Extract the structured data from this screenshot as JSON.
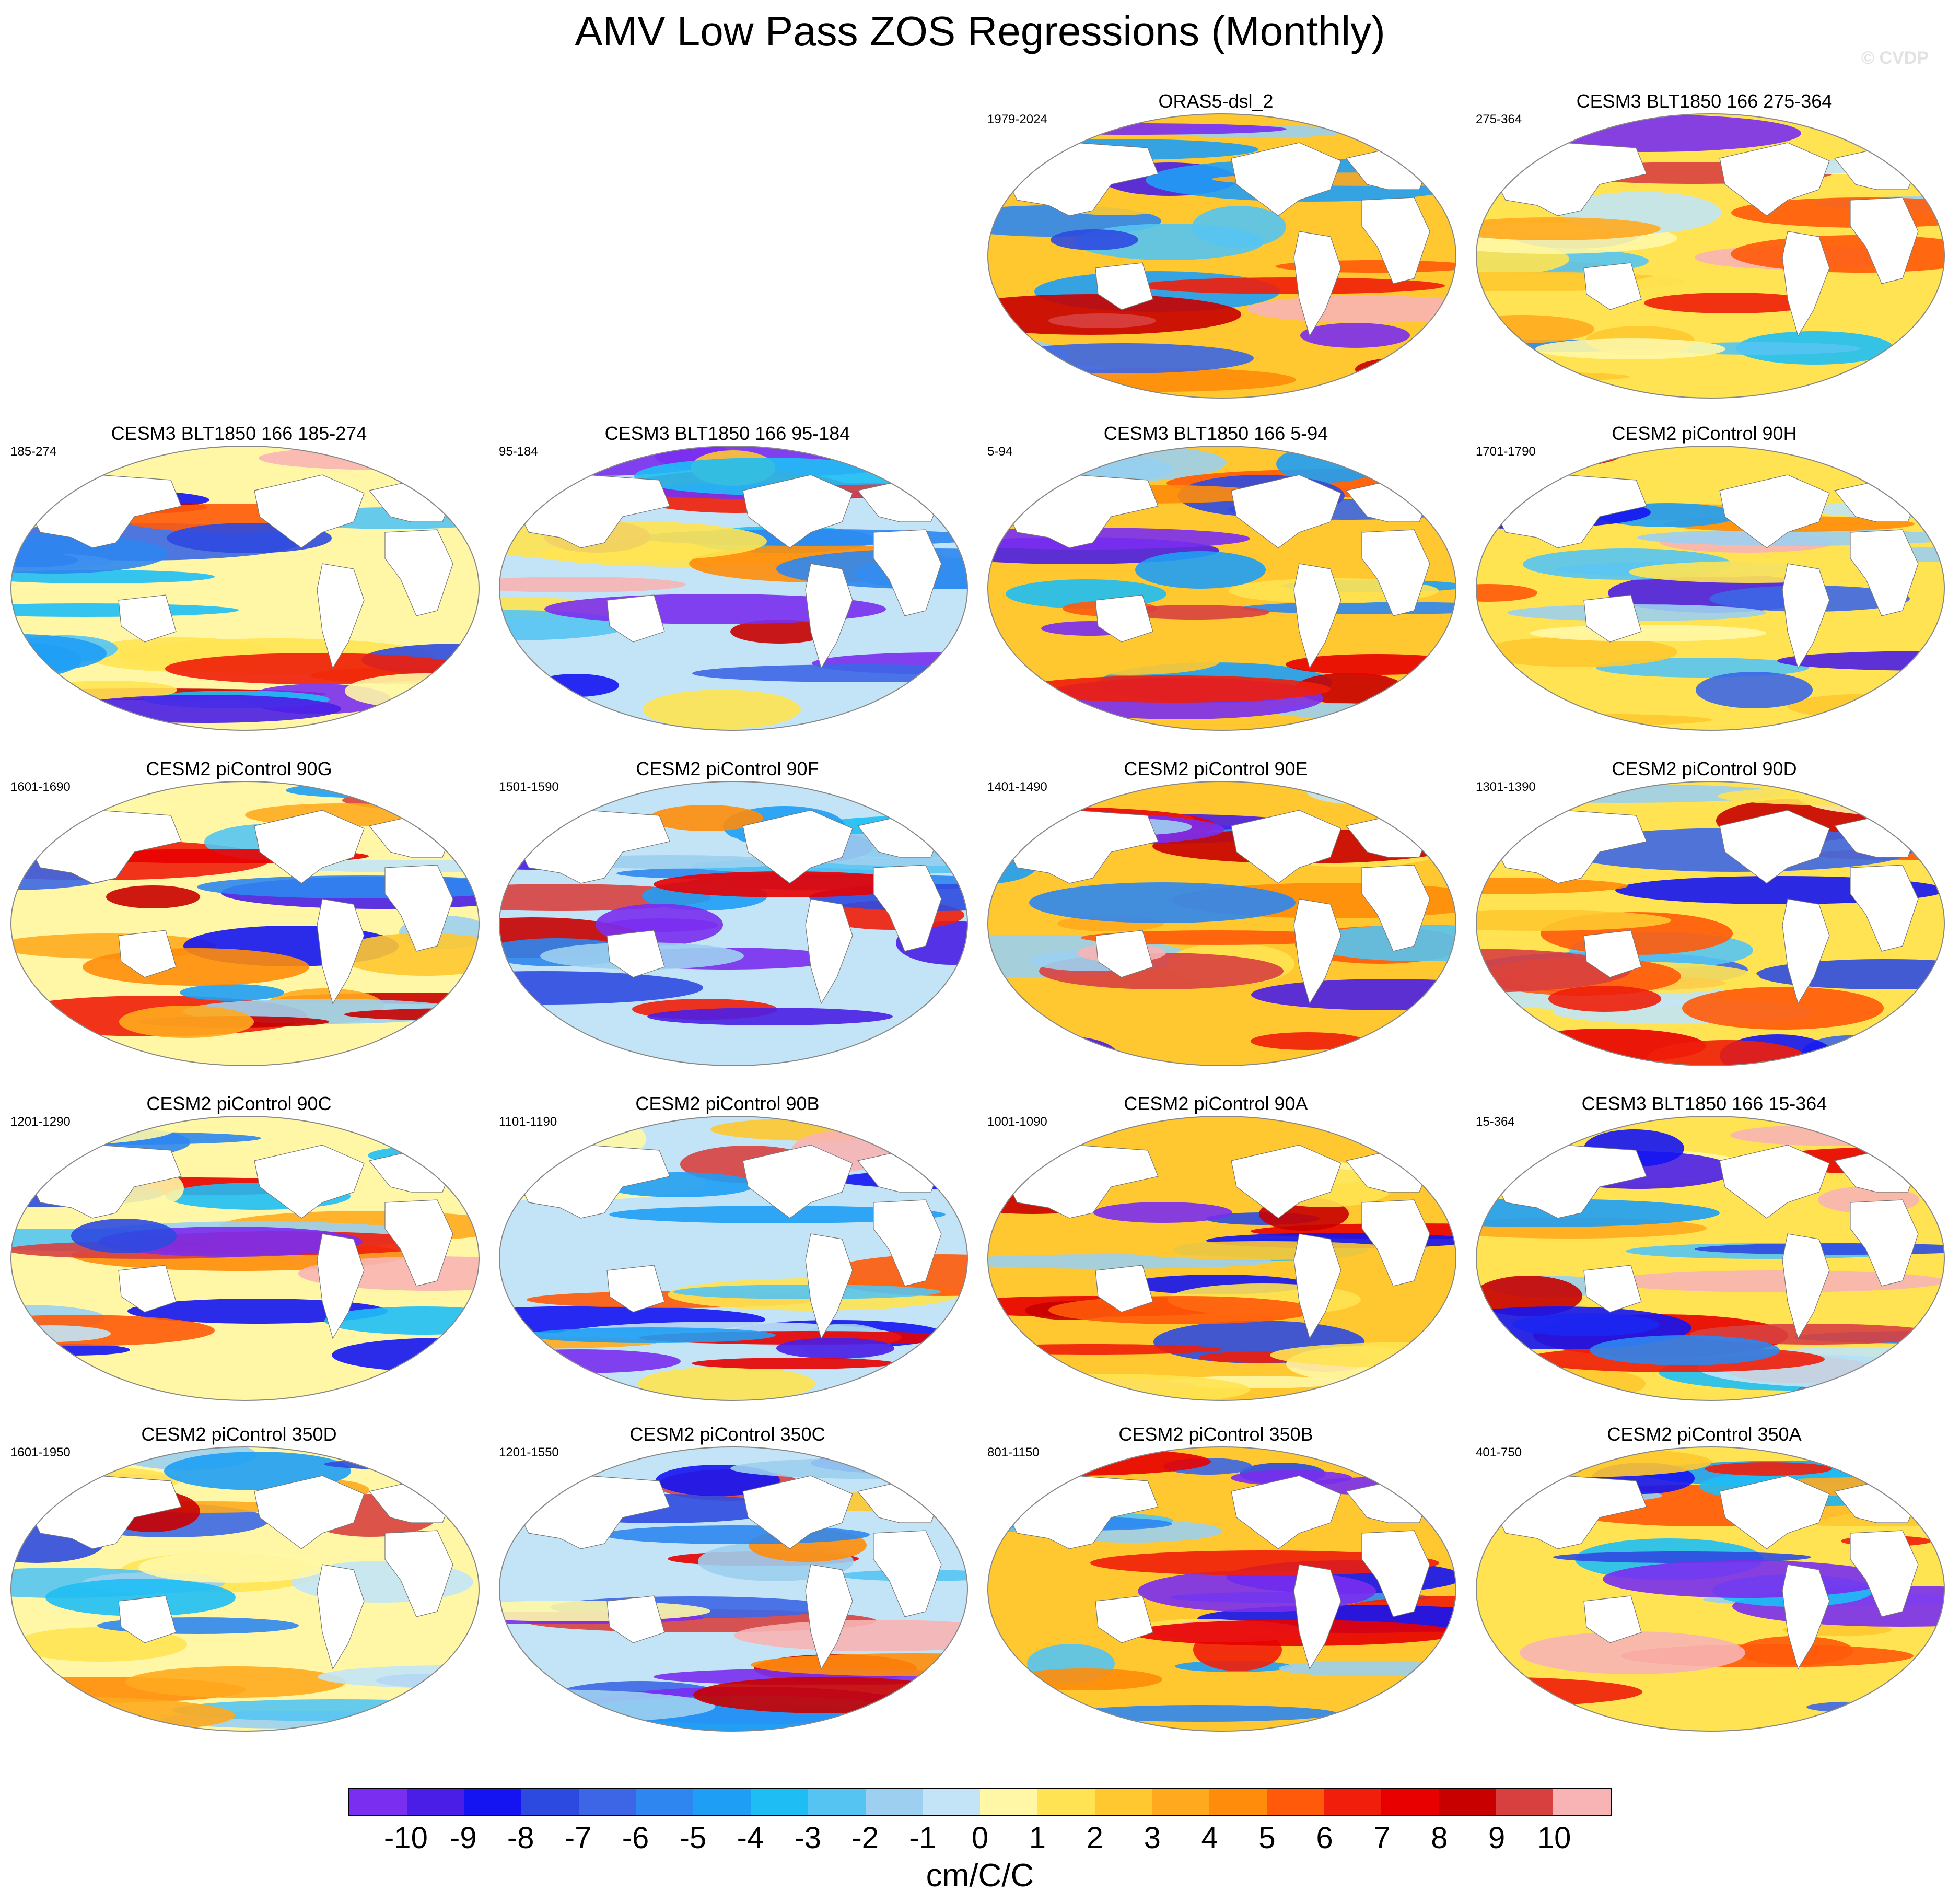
{
  "title": "AMV Low Pass ZOS Regressions (Monthly)",
  "watermark": "© CVDP",
  "panels": [
    {
      "title": "ORAS5-dsl_2",
      "years": "1979-2024"
    },
    {
      "title": "CESM3 BLT1850 166 275-364",
      "years": "275-364"
    },
    {
      "title": "CESM3 BLT1850 166 185-274",
      "years": "185-274"
    },
    {
      "title": "CESM3 BLT1850 166 95-184",
      "years": "95-184"
    },
    {
      "title": "CESM3 BLT1850 166 5-94",
      "years": "5-94"
    },
    {
      "title": "CESM2 piControl 90H",
      "years": "1701-1790"
    },
    {
      "title": "CESM2 piControl 90G",
      "years": "1601-1690"
    },
    {
      "title": "CESM2 piControl 90F",
      "years": "1501-1590"
    },
    {
      "title": "CESM2 piControl 90E",
      "years": "1401-1490"
    },
    {
      "title": "CESM2 piControl 90D",
      "years": "1301-1390"
    },
    {
      "title": "CESM2 piControl 90C",
      "years": "1201-1290"
    },
    {
      "title": "CESM2 piControl 90B",
      "years": "1101-1190"
    },
    {
      "title": "CESM2 piControl 90A",
      "years": "1001-1090"
    },
    {
      "title": "CESM3 BLT1850 166 15-364",
      "years": "15-364"
    },
    {
      "title": "CESM2 piControl 350D",
      "years": "1601-1950"
    },
    {
      "title": "CESM2 piControl 350C",
      "years": "1201-1550"
    },
    {
      "title": "CESM2 piControl 350B",
      "years": "801-1150"
    },
    {
      "title": "CESM2 piControl 350A",
      "years": "401-750"
    }
  ],
  "colorbar": {
    "colors": [
      "#7a2ef0",
      "#4a1ee6",
      "#1414f2",
      "#2d4ae0",
      "#3c66e6",
      "#2e86f0",
      "#1f9ef5",
      "#1ebef5",
      "#55c4f2",
      "#9ccff0",
      "#c2e4f6",
      "#fff7a6",
      "#ffe352",
      "#ffc830",
      "#ffaa1e",
      "#ff8c0a",
      "#ff5a0a",
      "#f01e0a",
      "#e80000",
      "#c80000",
      "#d84040",
      "#f8b4b4"
    ],
    "labels": [
      "-10",
      "-9",
      "-8",
      "-7",
      "-6",
      "-5",
      "-4",
      "-3",
      "-2",
      "-1",
      "0",
      "1",
      "2",
      "3",
      "4",
      "5",
      "6",
      "7",
      "8",
      "9",
      "10"
    ],
    "units": "cm/C/C"
  }
}
